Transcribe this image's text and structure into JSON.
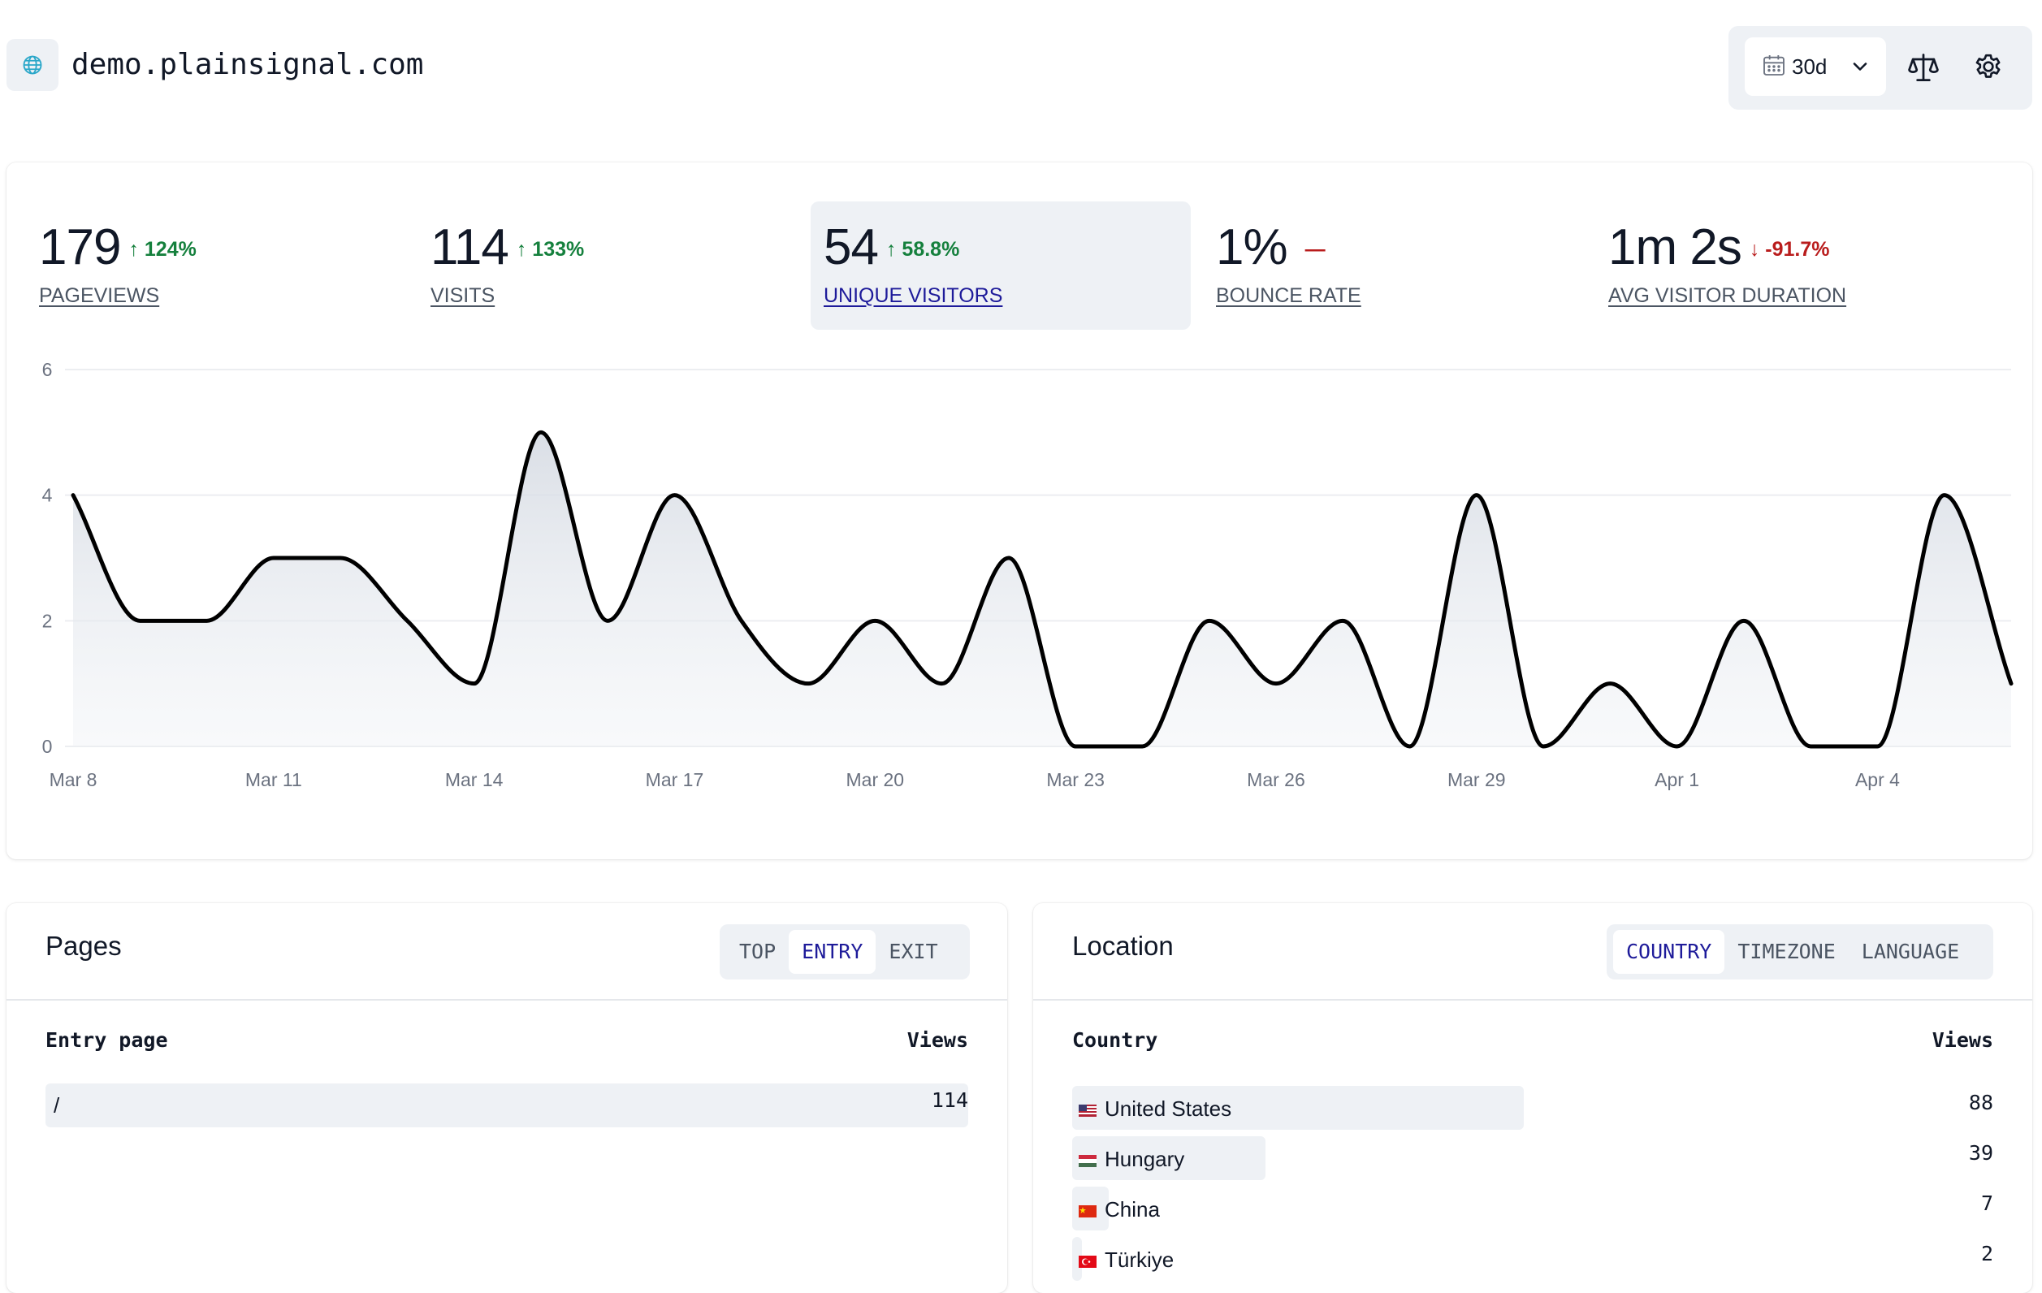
{
  "header": {
    "domain": "demo.plainsignal.com",
    "site_icon": "globe-icon",
    "range": {
      "value": "30d",
      "icon": "calendar-icon",
      "chevron": "chevron-down-icon"
    },
    "compare_icon": "scale-icon",
    "settings_icon": "gear-icon"
  },
  "metrics": [
    {
      "value": "179",
      "change": "124%",
      "direction": "up",
      "label": "PAGEVIEWS",
      "active": false
    },
    {
      "value": "114",
      "change": "133%",
      "direction": "up",
      "label": "VISITS",
      "active": false
    },
    {
      "value": "54",
      "change": "58.8%",
      "direction": "up",
      "label": "UNIQUE VISITORS",
      "active": true
    },
    {
      "value": "1%",
      "change": "",
      "direction": "none",
      "label": "BOUNCE RATE",
      "active": false
    },
    {
      "value": "1m 2s",
      "change": "-91.7%",
      "direction": "down",
      "label": "AVG VISITOR DURATION",
      "active": false
    }
  ],
  "colors": {
    "up": "#15803d",
    "down": "#b91c1c",
    "active_label": "#1e1b9a",
    "panel_bg": "#eef1f5"
  },
  "chart_data": {
    "type": "area",
    "title": "",
    "xlabel": "",
    "ylabel": "",
    "ylim": [
      0,
      6
    ],
    "yticks": [
      0,
      2,
      4,
      6
    ],
    "x": [
      "Mar 8",
      "Mar 9",
      "Mar 10",
      "Mar 11",
      "Mar 12",
      "Mar 13",
      "Mar 14",
      "Mar 15",
      "Mar 16",
      "Mar 17",
      "Mar 18",
      "Mar 19",
      "Mar 20",
      "Mar 21",
      "Mar 22",
      "Mar 23",
      "Mar 24",
      "Mar 25",
      "Mar 26",
      "Mar 27",
      "Mar 28",
      "Mar 29",
      "Mar 30",
      "Mar 31",
      "Apr 1",
      "Apr 2",
      "Apr 3",
      "Apr 4",
      "Apr 5",
      "Apr 6"
    ],
    "xticks": [
      "Mar 8",
      "Mar 11",
      "Mar 14",
      "Mar 17",
      "Mar 20",
      "Mar 23",
      "Mar 26",
      "Mar 29",
      "Apr 1",
      "Apr 4"
    ],
    "series": [
      {
        "values": [
          4,
          2,
          2,
          3,
          3,
          2,
          1,
          5,
          2,
          4,
          2,
          1,
          2,
          1,
          3,
          0,
          0,
          2,
          1,
          2,
          0,
          4,
          0,
          1,
          0,
          2,
          0,
          0,
          4,
          1
        ]
      }
    ],
    "grid": true,
    "legend": "none"
  },
  "pages": {
    "title": "Pages",
    "tabs": [
      {
        "label": "TOP",
        "active": false
      },
      {
        "label": "ENTRY",
        "active": true
      },
      {
        "label": "EXIT",
        "active": false
      }
    ],
    "col_label": "Entry page",
    "col_value": "Views",
    "rows": [
      {
        "label": "/",
        "value": "114",
        "share": 1.0
      }
    ]
  },
  "location": {
    "title": "Location",
    "tabs": [
      {
        "label": "COUNTRY",
        "active": true
      },
      {
        "label": "TIMEZONE",
        "active": false
      },
      {
        "label": "LANGUAGE",
        "active": false
      }
    ],
    "col_label": "Country",
    "col_value": "Views",
    "rows": [
      {
        "label": "United States",
        "value": "88",
        "flag": "flag-us-icon",
        "share": 0.49
      },
      {
        "label": "Hungary",
        "value": "39",
        "flag": "flag-hu-icon",
        "share": 0.21
      },
      {
        "label": "China",
        "value": "7",
        "flag": "flag-cn-icon",
        "share": 0.04
      },
      {
        "label": "Türkiye",
        "value": "2",
        "flag": "flag-tr-icon",
        "share": 0.01
      }
    ]
  }
}
